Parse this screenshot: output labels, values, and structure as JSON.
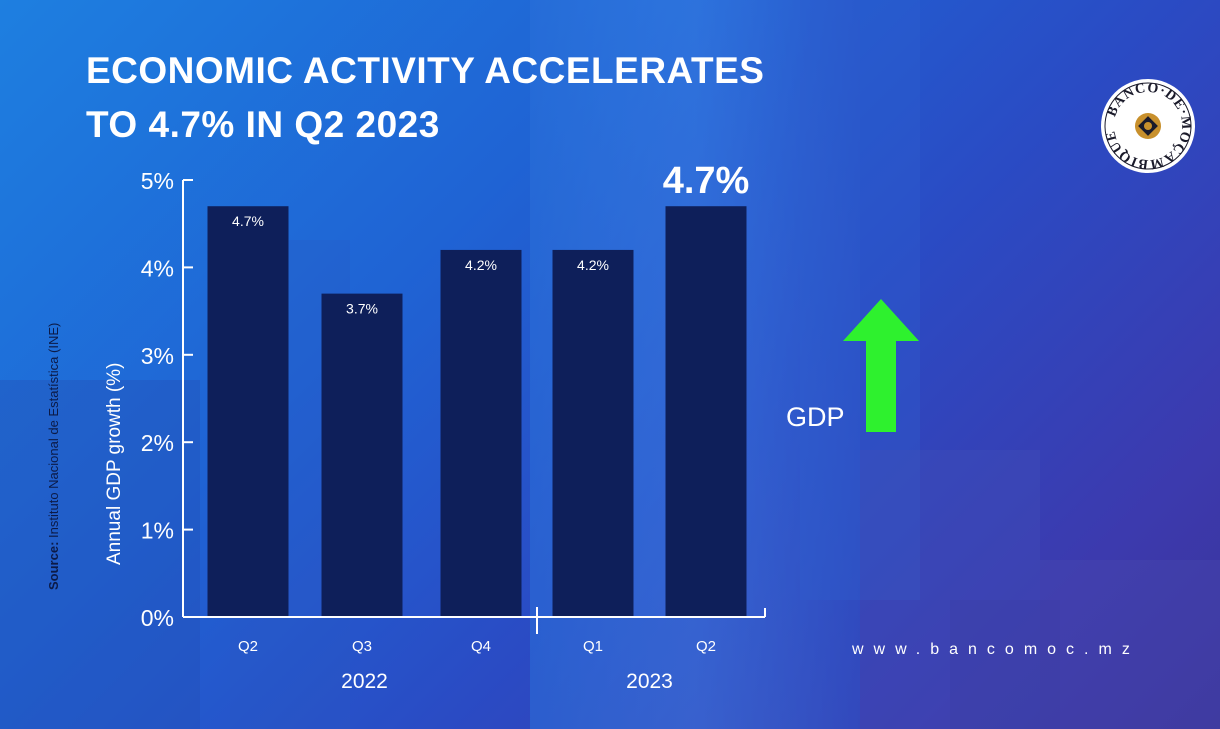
{
  "title_lines": [
    "ECONOMIC ACTIVITY ACCELERATES",
    "TO 4.7% IN Q2 2023"
  ],
  "source_label": "Source:",
  "source_text": "Instituto Nacional de Estatística (INE)",
  "gdp_label": "GDP",
  "website": "www.bancomoc.mz",
  "logo_text": "BANCO·DE·MOÇAMBIQUE",
  "colors": {
    "bar": "#0e1f5a",
    "arrow": "#2ef12e",
    "text": "#ffffff"
  },
  "chart_data": {
    "type": "bar",
    "title": "ECONOMIC ACTIVITY ACCELERATES TO 4.7% IN Q2 2023",
    "categories": [
      "Q2",
      "Q3",
      "Q4",
      "Q1",
      "Q2"
    ],
    "years": [
      {
        "label": "2022",
        "from": 0,
        "to": 2
      },
      {
        "label": "2023",
        "from": 3,
        "to": 4
      }
    ],
    "values": [
      4.7,
      3.7,
      4.2,
      4.2,
      4.7
    ],
    "data_labels": [
      "4.7%",
      "3.7%",
      "4.2%",
      "4.2%",
      ""
    ],
    "highlight_label": "4.7%",
    "ylabel": "Annual GDP growth (%)",
    "xlabel": "",
    "ylim": [
      0,
      5
    ],
    "yticks": [
      0,
      1,
      2,
      3,
      4,
      5
    ],
    "ytick_labels": [
      "0%",
      "1%",
      "2%",
      "3%",
      "4%",
      "5%"
    ],
    "grid": false,
    "legend": "none"
  }
}
